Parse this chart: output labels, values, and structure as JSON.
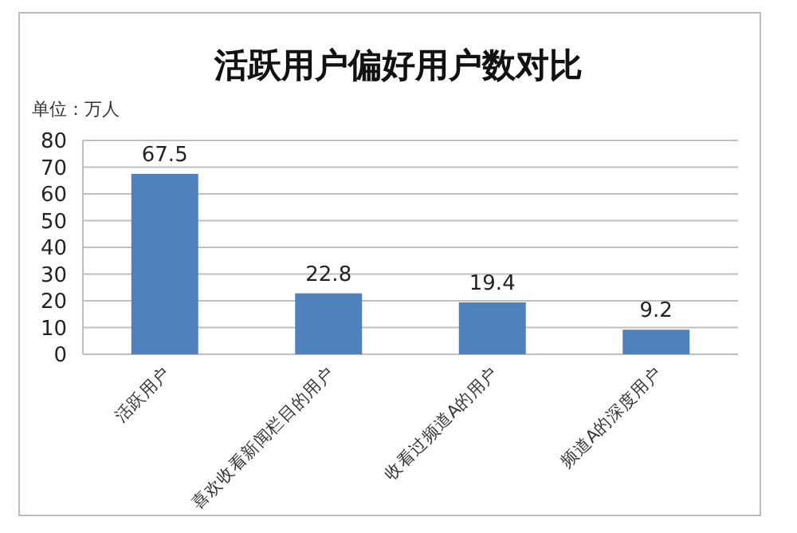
{
  "chart_data": {
    "type": "bar",
    "title": "活跃用户偏好用户数对比",
    "ylabel": "单位：万人",
    "categories": [
      "活跃用户",
      "喜欢收看新闻栏目的用户",
      "收看过频道A的用户",
      "频道A的深度用户"
    ],
    "values": [
      67.5,
      22.8,
      19.4,
      9.2
    ],
    "color": "#4f81bd",
    "ylim": [
      0,
      80
    ],
    "yticks": [
      0,
      10,
      20,
      30,
      40,
      50,
      60,
      70,
      80
    ],
    "grid": "y",
    "data_labels": true
  }
}
